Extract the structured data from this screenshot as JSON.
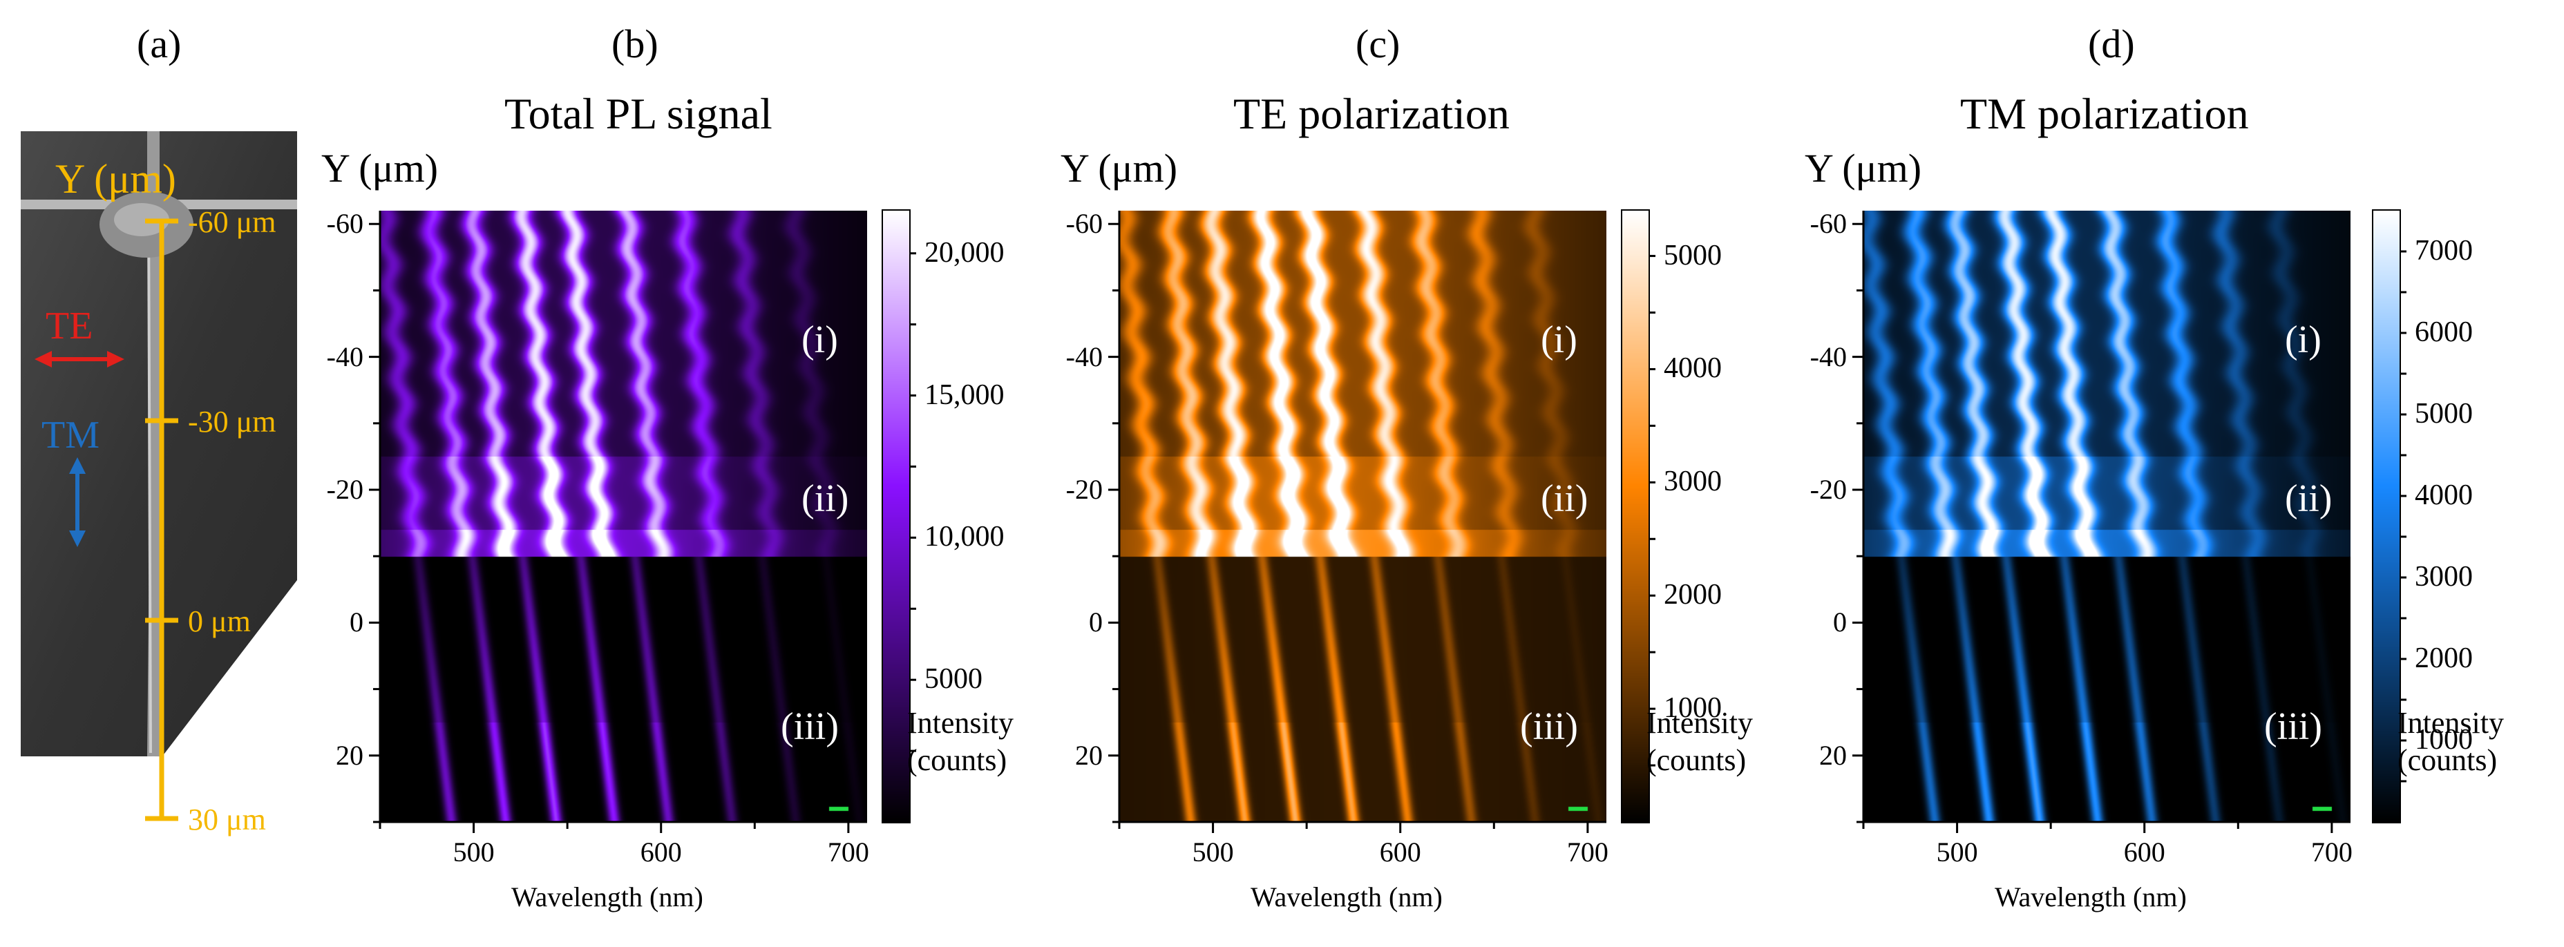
{
  "panel_labels": [
    "(a)",
    "(b)",
    "(c)",
    "(d)"
  ],
  "panel_a": {
    "axis_title": "Y (μm)",
    "te_label": "TE",
    "tm_label": "TM",
    "y_marks": [
      "-60 μm",
      "-30 μm",
      "0 μm",
      "30 μm"
    ],
    "colors": {
      "axis": "#f5b800",
      "te": "#e3201b",
      "tm": "#1f6fc2",
      "background": "#3a3a3a"
    }
  },
  "panels": [
    {
      "title": "Total PL signal",
      "ylabel": "Y (μm)",
      "xlabel": "Wavelength (nm)",
      "colorbar_ticks": [
        "20,000",
        "15,000",
        "10,000",
        "5000"
      ],
      "colorbar_label": [
        "Intensity",
        "(counts)"
      ],
      "regions": [
        "(i)",
        "(ii)",
        "(iii)"
      ],
      "scalebar": "10 nm"
    },
    {
      "title": "TE polarization",
      "ylabel": "Y (μm)",
      "xlabel": "Wavelength (nm)",
      "colorbar_ticks": [
        "5000",
        "4000",
        "3000",
        "2000",
        "1000"
      ],
      "colorbar_label": [
        "Intensity",
        "(counts)"
      ],
      "regions": [
        "(i)",
        "(ii)",
        "(iii)"
      ],
      "scalebar": "10 nm"
    },
    {
      "title": "TM polarization",
      "ylabel": "Y (μm)",
      "xlabel": "Wavelength (nm)",
      "colorbar_ticks": [
        "7000",
        "6000",
        "5000",
        "4000",
        "3000",
        "2000",
        "1000"
      ],
      "colorbar_label": [
        "Intensity",
        "(counts)"
      ],
      "regions": [
        "(i)",
        "(ii)",
        "(iii)"
      ],
      "scalebar": "10 nm"
    }
  ],
  "chart_data": [
    {
      "type": "heatmap",
      "title": "Total PL signal",
      "xlabel": "Wavelength (nm)",
      "ylabel": "Y (μm)",
      "xlim": [
        450,
        710
      ],
      "ylim": [
        -62,
        30
      ],
      "xticks": [
        500,
        600,
        700
      ],
      "yticks": [
        -60,
        -40,
        -20,
        0,
        20
      ],
      "colorbar": {
        "label": "Intensity (counts)",
        "range": [
          0,
          21500
        ],
        "ticks": [
          5000,
          10000,
          15000,
          20000
        ]
      },
      "colormap": [
        "#000000",
        "#8a10ff",
        "#ffffff"
      ],
      "regions": [
        {
          "label": "(i)",
          "y": -40
        },
        {
          "label": "(ii)",
          "y": -15
        },
        {
          "label": "(iii)",
          "y": 20
        }
      ]
    },
    {
      "type": "heatmap",
      "title": "TE polarization",
      "xlabel": "Wavelength (nm)",
      "ylabel": "Y (μm)",
      "xlim": [
        450,
        710
      ],
      "ylim": [
        -62,
        30
      ],
      "xticks": [
        500,
        600,
        700
      ],
      "yticks": [
        -60,
        -40,
        -20,
        0,
        20
      ],
      "colorbar": {
        "label": "Intensity (counts)",
        "range": [
          0,
          5400
        ],
        "ticks": [
          1000,
          2000,
          3000,
          4000,
          5000
        ]
      },
      "colormap": [
        "#000000",
        "#ff8400",
        "#ffffff"
      ],
      "regions": [
        {
          "label": "(i)",
          "y": -40
        },
        {
          "label": "(ii)",
          "y": -15
        },
        {
          "label": "(iii)",
          "y": 20
        }
      ]
    },
    {
      "type": "heatmap",
      "title": "TM polarization",
      "xlabel": "Wavelength (nm)",
      "ylabel": "Y (μm)",
      "xlim": [
        450,
        710
      ],
      "ylim": [
        -62,
        30
      ],
      "xticks": [
        500,
        600,
        700
      ],
      "yticks": [
        -60,
        -40,
        -20,
        0,
        20
      ],
      "colorbar": {
        "label": "Intensity (counts)",
        "range": [
          0,
          7500
        ],
        "ticks": [
          1000,
          2000,
          3000,
          4000,
          5000,
          6000,
          7000
        ]
      },
      "colormap": [
        "#000000",
        "#1888ff",
        "#ffffff"
      ],
      "regions": [
        {
          "label": "(i)",
          "y": -40
        },
        {
          "label": "(ii)",
          "y": -15
        },
        {
          "label": "(iii)",
          "y": 20
        }
      ]
    }
  ]
}
